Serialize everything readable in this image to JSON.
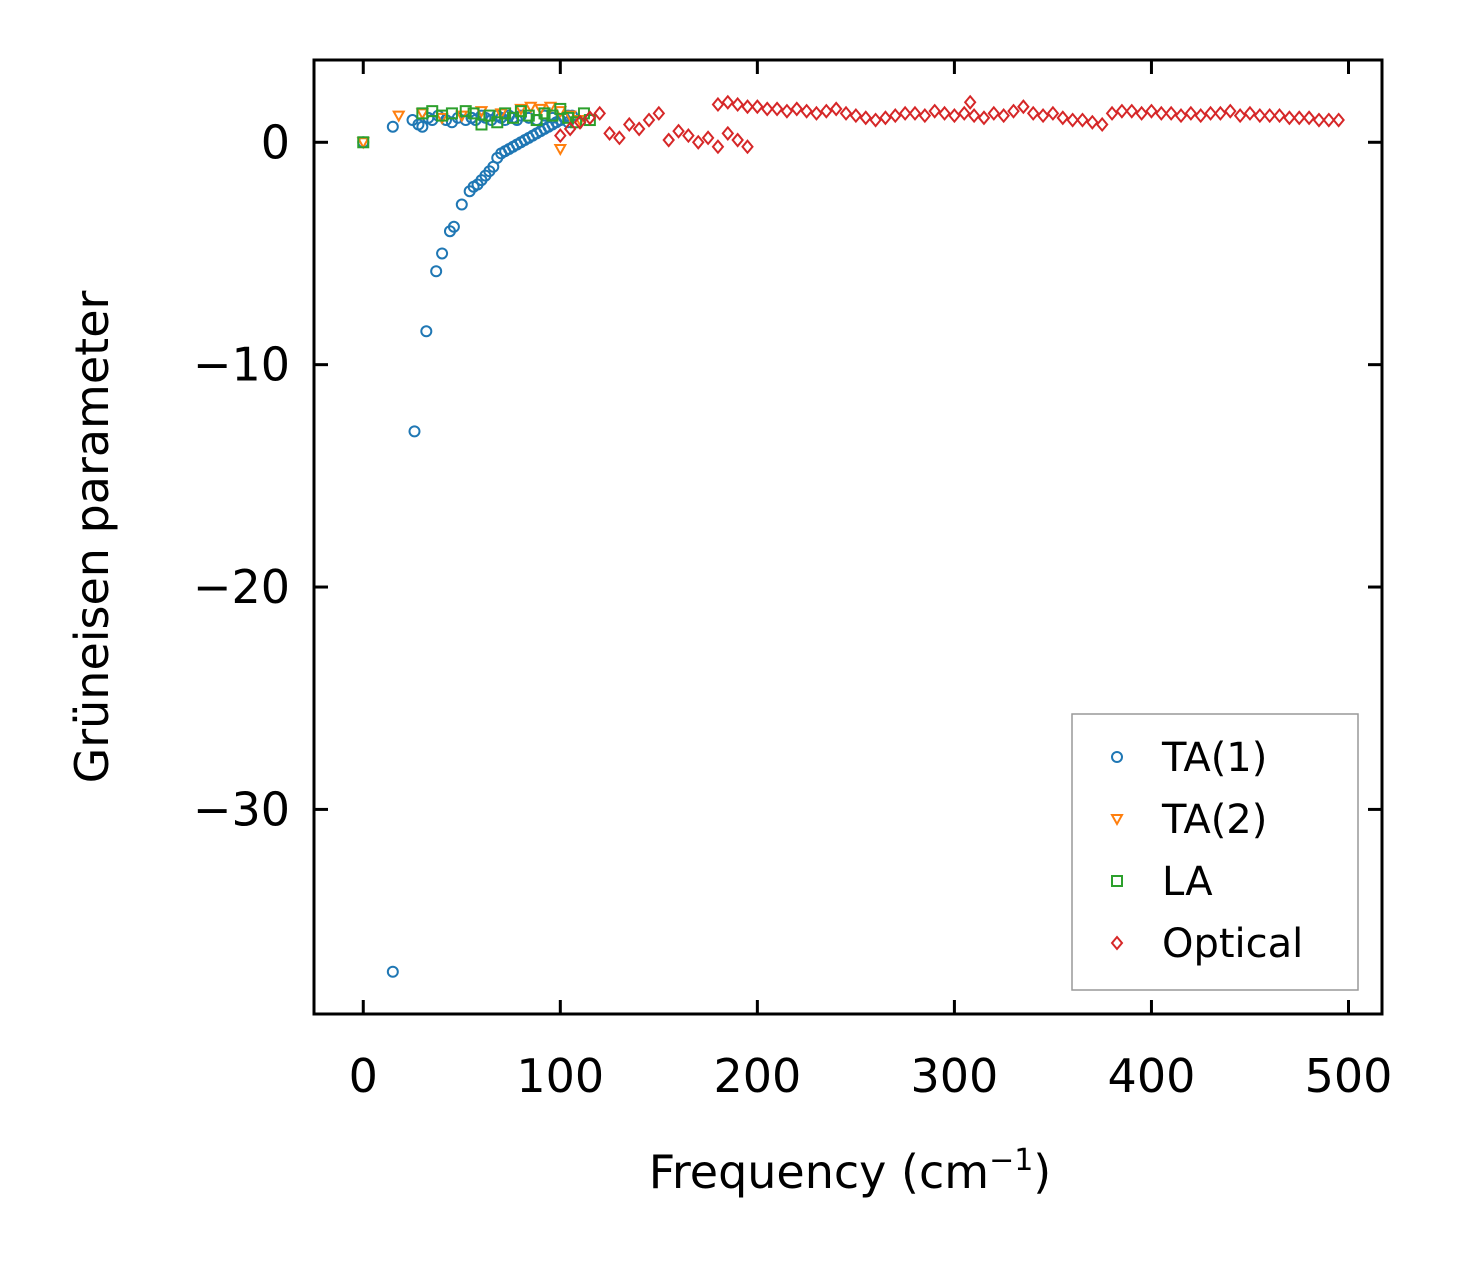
{
  "chart_data": {
    "type": "scatter",
    "title": "",
    "xlabel": "Frequency (cm",
    "xlabel_superscript": "−1",
    "xlabel_suffix": ")",
    "ylabel": "Grüneisen parameter",
    "xlim": [
      -25,
      517
    ],
    "ylim": [
      -39.2,
      3.7
    ],
    "xticks": [
      0,
      100,
      200,
      300,
      400,
      500
    ],
    "yticks": [
      0,
      -10,
      -20,
      -30
    ],
    "xtick_labels": [
      "0",
      "100",
      "200",
      "300",
      "400",
      "500"
    ],
    "ytick_labels": [
      "0",
      "−10",
      "−20",
      "−30"
    ],
    "legend_position": "bottom-right",
    "series": [
      {
        "name": "TA(1)",
        "color": "#1f77b4",
        "marker": "circle",
        "x": [
          0,
          15,
          15,
          25,
          26,
          28,
          30,
          32,
          33,
          35,
          37,
          38,
          40,
          42,
          44,
          45,
          46,
          48,
          50,
          52,
          54,
          55,
          56,
          57,
          58,
          60,
          62,
          64,
          66,
          68,
          70,
          72,
          74,
          76,
          78,
          80,
          82,
          84,
          86,
          88,
          90,
          92,
          94,
          96,
          98,
          100,
          102,
          104,
          106,
          55,
          60,
          62,
          65,
          68,
          70,
          72,
          74,
          76,
          78,
          80,
          84,
          88,
          92,
          96,
          100,
          104
        ],
        "y": [
          0,
          -37.3,
          0.7,
          1.0,
          -13.0,
          0.8,
          0.7,
          -8.5,
          1.1,
          1.0,
          -5.8,
          1.2,
          -5.0,
          1.0,
          -4.0,
          0.9,
          -3.8,
          1.1,
          -2.8,
          1.0,
          -2.2,
          1.1,
          -2.0,
          1.0,
          -1.9,
          -1.7,
          -1.5,
          -1.3,
          -1.1,
          -0.7,
          -0.5,
          -0.4,
          -0.3,
          -0.2,
          -0.1,
          0.0,
          0.1,
          0.2,
          0.3,
          0.4,
          0.5,
          0.6,
          0.7,
          0.8,
          0.9,
          1.0,
          1.1,
          1.2,
          1.2,
          1.1,
          1.2,
          1.1,
          1.0,
          1.2,
          1.1,
          1.0,
          1.2,
          1.1,
          1.0,
          1.2,
          1.1,
          1.0,
          1.2,
          1.1,
          1.0,
          0.9
        ]
      },
      {
        "name": "TA(2)",
        "color": "#ff7f0e",
        "marker": "triangle-down",
        "x": [
          0,
          18,
          30,
          40,
          50,
          60,
          70,
          80,
          85,
          90,
          95,
          100,
          105,
          110,
          100
        ],
        "y": [
          0,
          1.2,
          1.3,
          1.1,
          1.2,
          1.4,
          1.3,
          1.5,
          1.6,
          1.5,
          1.6,
          1.4,
          1.2,
          1.0,
          -0.3
        ]
      },
      {
        "name": "LA",
        "color": "#2ca02c",
        "marker": "square",
        "x": [
          0,
          30,
          35,
          40,
          45,
          52,
          56,
          60,
          64,
          68,
          72,
          76,
          80,
          84,
          88,
          92,
          96,
          100,
          104,
          108,
          112,
          115
        ],
        "y": [
          0,
          1.3,
          1.4,
          1.2,
          1.3,
          1.4,
          1.3,
          0.8,
          1.2,
          0.9,
          1.3,
          1.1,
          1.4,
          1.2,
          1.0,
          1.3,
          1.2,
          1.5,
          1.1,
          0.9,
          1.3,
          1.0
        ]
      },
      {
        "name": "Optical",
        "color": "#d62728",
        "marker": "diamond",
        "x": [
          100,
          105,
          110,
          115,
          120,
          125,
          130,
          135,
          140,
          145,
          150,
          155,
          160,
          165,
          170,
          175,
          180,
          185,
          190,
          195,
          180,
          185,
          190,
          195,
          200,
          205,
          210,
          215,
          220,
          225,
          230,
          235,
          240,
          245,
          250,
          255,
          260,
          265,
          270,
          275,
          280,
          285,
          290,
          295,
          300,
          305,
          308,
          310,
          315,
          320,
          325,
          330,
          335,
          340,
          345,
          350,
          355,
          360,
          365,
          370,
          375,
          380,
          385,
          390,
          395,
          400,
          405,
          410,
          415,
          420,
          425,
          430,
          435,
          440,
          445,
          450,
          455,
          460,
          465,
          470,
          475,
          480,
          485,
          490,
          495
        ],
        "y": [
          0.3,
          0.6,
          0.9,
          1.1,
          1.3,
          0.4,
          0.2,
          0.8,
          0.6,
          1.0,
          1.3,
          0.1,
          0.5,
          0.3,
          0.0,
          0.2,
          -0.2,
          0.4,
          0.1,
          -0.2,
          1.7,
          1.8,
          1.7,
          1.6,
          1.6,
          1.5,
          1.5,
          1.4,
          1.5,
          1.4,
          1.3,
          1.4,
          1.5,
          1.3,
          1.2,
          1.1,
          1.0,
          1.1,
          1.2,
          1.3,
          1.3,
          1.2,
          1.4,
          1.3,
          1.2,
          1.3,
          1.8,
          1.2,
          1.1,
          1.3,
          1.2,
          1.4,
          1.6,
          1.3,
          1.2,
          1.3,
          1.1,
          1.0,
          1.0,
          0.9,
          0.8,
          1.3,
          1.4,
          1.4,
          1.3,
          1.4,
          1.3,
          1.3,
          1.2,
          1.3,
          1.2,
          1.3,
          1.3,
          1.4,
          1.2,
          1.3,
          1.2,
          1.2,
          1.2,
          1.1,
          1.1,
          1.1,
          1.0,
          1.0,
          1.0
        ]
      }
    ]
  }
}
